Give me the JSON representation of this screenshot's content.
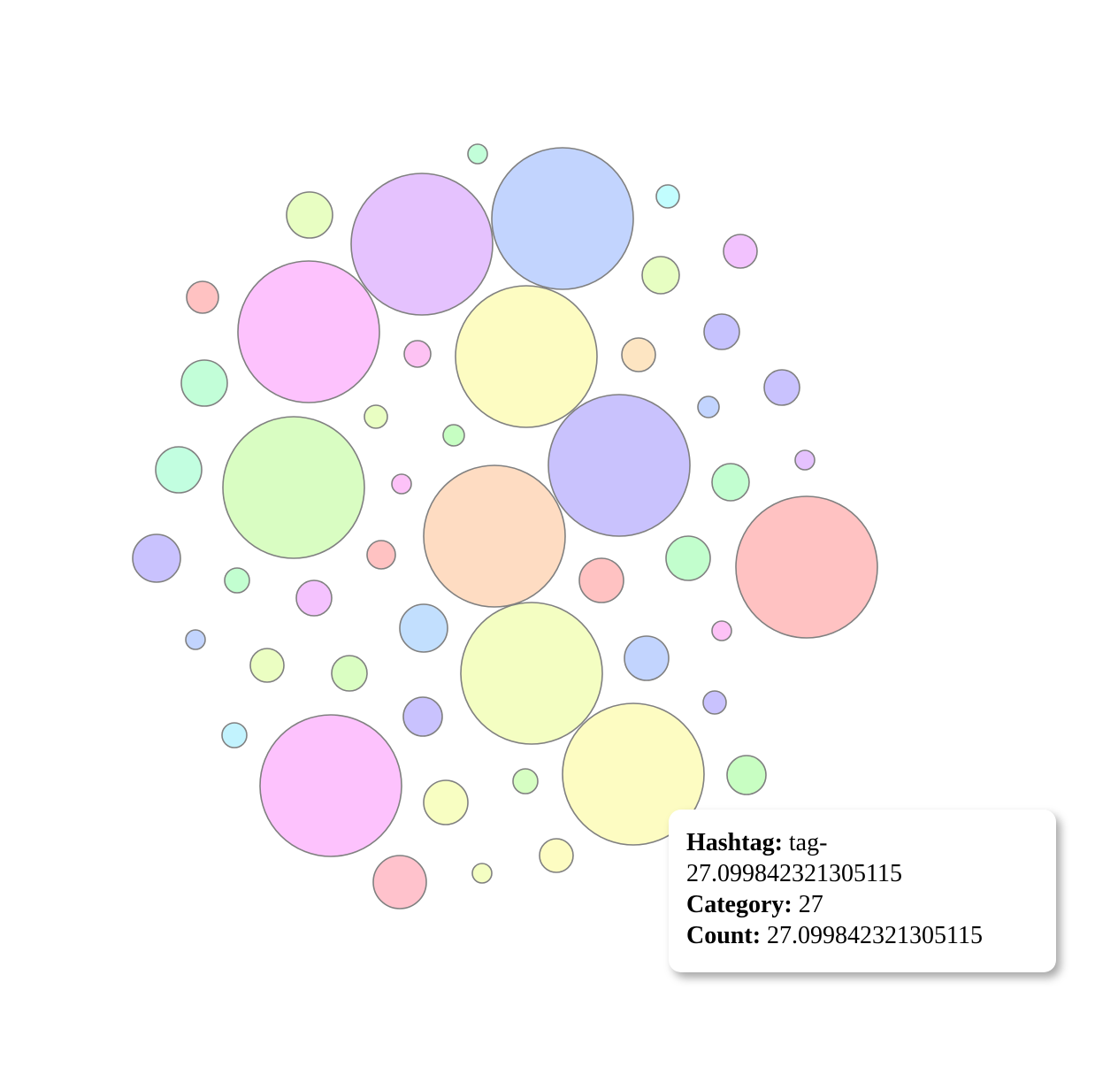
{
  "chart_data": {
    "type": "bubble",
    "title": "",
    "legend": "none",
    "grid": false,
    "bubbles": [
      {
        "size": 80,
        "color": "#c2d4fe"
      },
      {
        "size": 80,
        "color": "#e5c2fe"
      },
      {
        "size": 80,
        "color": "#fdc2fd"
      },
      {
        "size": 80,
        "color": "#fdfcc2"
      },
      {
        "size": 80,
        "color": "#c9c2fd"
      },
      {
        "size": 80,
        "color": "#d9fdc2"
      },
      {
        "size": 80,
        "color": "#fedcc2"
      },
      {
        "size": 80,
        "color": "#ffc2c2"
      },
      {
        "size": 80,
        "color": "#f4fec2"
      },
      {
        "size": 80,
        "color": "#fdfcc2"
      },
      {
        "size": 80,
        "color": "#fdc2fd"
      },
      {
        "size": 11,
        "color": "#c2fed9"
      },
      {
        "size": 26,
        "color": "#e8fec2"
      },
      {
        "size": 13,
        "color": "#c2fdfe"
      },
      {
        "size": 19,
        "color": "#f2c2fe"
      },
      {
        "size": 21,
        "color": "#e7fec2"
      },
      {
        "size": 18,
        "color": "#ffc2c2"
      },
      {
        "size": 20,
        "color": "#c6c2fe"
      },
      {
        "size": 15,
        "color": "#fdc2f3"
      },
      {
        "size": 19,
        "color": "#fde5c2"
      },
      {
        "size": 26,
        "color": "#c2fed8"
      },
      {
        "size": 20,
        "color": "#c9c2fe"
      },
      {
        "size": 13,
        "color": "#e9fec2"
      },
      {
        "size": 12,
        "color": "#c2d4fe"
      },
      {
        "size": 12,
        "color": "#c6fec2"
      },
      {
        "size": 26,
        "color": "#c2fee0"
      },
      {
        "size": 11,
        "color": "#e5c2fe"
      },
      {
        "size": 21,
        "color": "#c2fed0"
      },
      {
        "size": 11,
        "color": "#fdc2f8"
      },
      {
        "size": 27,
        "color": "#c9c2fe"
      },
      {
        "size": 16,
        "color": "#ffc2c2"
      },
      {
        "size": 25,
        "color": "#c2fecd"
      },
      {
        "size": 25,
        "color": "#ffc2c2"
      },
      {
        "size": 14,
        "color": "#c2fed0"
      },
      {
        "size": 20,
        "color": "#f4c2fe"
      },
      {
        "size": 27,
        "color": "#c2dffe"
      },
      {
        "size": 11,
        "color": "#fdc2f6"
      },
      {
        "size": 11,
        "color": "#c2d4fe"
      },
      {
        "size": 19,
        "color": "#ebfec2"
      },
      {
        "size": 20,
        "color": "#dafec2"
      },
      {
        "size": 25,
        "color": "#c2d4fe"
      },
      {
        "size": 22,
        "color": "#c9c2fe"
      },
      {
        "size": 13,
        "color": "#c9c2fe"
      },
      {
        "size": 14,
        "color": "#c2f3fe"
      },
      {
        "size": 22,
        "color": "#c8fec2"
      },
      {
        "size": 25,
        "color": "#f8fec2"
      },
      {
        "size": 14,
        "color": "#d6fec2"
      },
      {
        "size": 30,
        "color": "#ffc2cc"
      },
      {
        "size": 11,
        "color": "#f4fec2"
      },
      {
        "size": 19,
        "color": "#fdfcc2"
      }
    ]
  },
  "tooltip": {
    "hashtag_label": "Hashtag:",
    "hashtag_value": "tag-27.099842321305115",
    "category_label": "Category:",
    "category_value": "27",
    "count_label": "Count:",
    "count_value": "27.099842321305115"
  }
}
